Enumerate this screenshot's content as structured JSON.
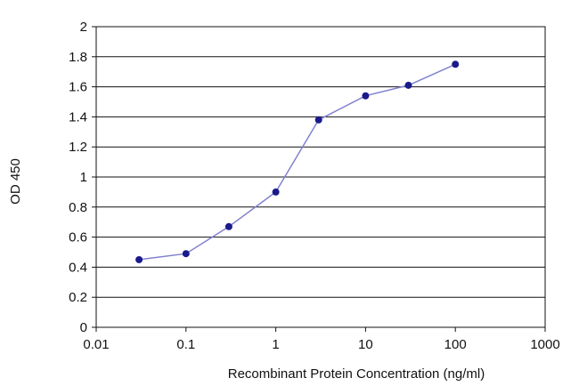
{
  "chart_data": {
    "type": "line",
    "title": "",
    "xlabel": "Recombinant Protein Concentration (ng/ml)",
    "ylabel": "OD 450",
    "x_scale": "log",
    "xlim": [
      0.01,
      1000
    ],
    "ylim": [
      0,
      2
    ],
    "x_ticks": [
      "0.01",
      "0.1",
      "1",
      "10",
      "100",
      "1000"
    ],
    "y_ticks": [
      "0",
      "0.2",
      "0.4",
      "0.6",
      "0.8",
      "1",
      "1.2",
      "1.4",
      "1.6",
      "1.8",
      "2"
    ],
    "grid": "horizontal",
    "legend": "none",
    "series": [
      {
        "x": [
          0.03,
          0.1,
          0.3,
          1,
          3,
          10,
          30,
          100
        ],
        "y": [
          0.45,
          0.49,
          0.67,
          0.9,
          1.38,
          1.54,
          1.61,
          1.75
        ],
        "color": "#1a1a8c",
        "line_color": "#8080d0"
      }
    ],
    "plot_background": "#ffffff",
    "grid_color": "#111111"
  }
}
